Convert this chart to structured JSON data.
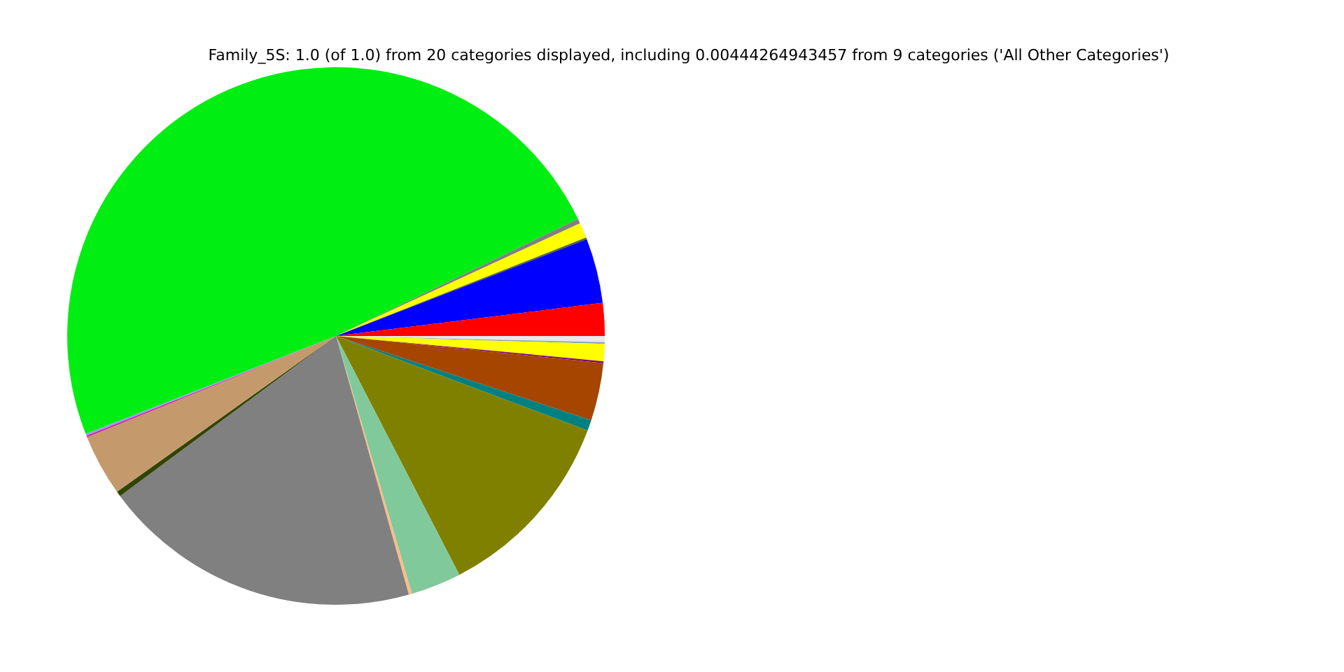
{
  "chart_data": {
    "type": "pie",
    "title": "Family_5S: 1.0 (of 1.0) from 20 categories displayed, including 0.00444264943457 from 9 categories ('All Other Categories')",
    "categories": [
      null,
      null,
      null,
      null,
      null,
      null,
      null,
      null,
      null,
      null,
      null,
      null,
      null,
      null,
      null,
      null,
      null,
      null,
      null,
      null
    ],
    "values": [
      0.36,
      0.11,
      1.03,
      0.11,
      3.47,
      0.64,
      11.69,
      3.03,
      0.19,
      19.22,
      0.31,
      3.69,
      0.11,
      0.11,
      48.76,
      0.28,
      0.92,
      0.11,
      3.89,
      1.97
    ],
    "colors": [
      "#e8e8ee",
      "#8fa8b0",
      "#ffff00",
      "#800080",
      "#a64500",
      "#008080",
      "#808000",
      "#80c99a",
      "#ffbb88",
      "#808080",
      "#334400",
      "#c49a6c",
      "#cc3399",
      "#9999ff",
      "#00ee11",
      "#808080",
      "#ffff00",
      "#556b2f",
      "#0000ff",
      "#ff0000"
    ],
    "legend": false
  }
}
